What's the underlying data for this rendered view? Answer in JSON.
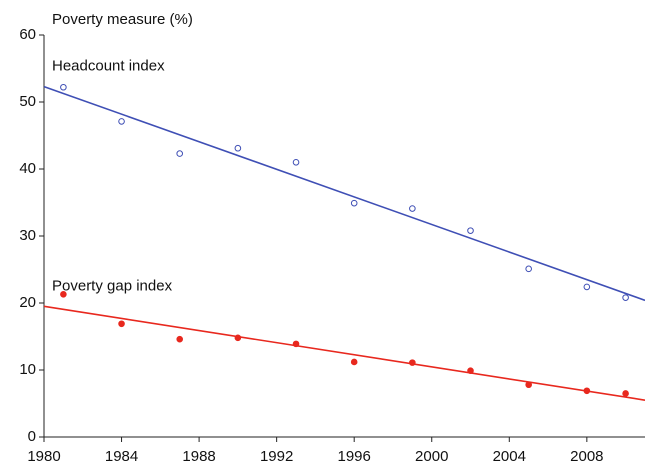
{
  "chart_data": {
    "type": "scatter",
    "y_label": "Poverty measure (%)",
    "x": [
      1981,
      1984,
      1987,
      1990,
      1993,
      1996,
      1999,
      2002,
      2005,
      2008,
      2010
    ],
    "series": [
      {
        "name": "Headcount index",
        "color": "#3f4fb5",
        "marker": "open",
        "values": [
          52.2,
          47.1,
          42.3,
          43.1,
          41.0,
          34.9,
          34.1,
          30.8,
          25.1,
          22.4,
          20.8
        ],
        "trend": {
          "x": [
            1980,
            2011
          ],
          "values": [
            52.3,
            20.4
          ]
        }
      },
      {
        "name": "Poverty gap index",
        "color": "#e8281e",
        "marker": "filled",
        "values": [
          21.3,
          16.9,
          14.6,
          14.8,
          13.9,
          11.2,
          11.1,
          9.9,
          7.8,
          6.9,
          6.5
        ],
        "trend": {
          "x": [
            1980,
            2011
          ],
          "values": [
            19.5,
            5.5
          ]
        }
      }
    ],
    "xlim": [
      1980,
      2011
    ],
    "ylim": [
      0,
      60
    ],
    "xticks": [
      1980,
      1984,
      1988,
      1992,
      1996,
      2000,
      2004,
      2008
    ],
    "yticks": [
      0,
      10,
      20,
      30,
      40,
      50,
      60
    ],
    "grid": false
  }
}
